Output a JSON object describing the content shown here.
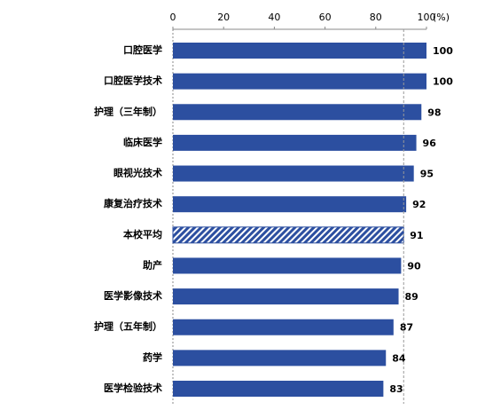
{
  "chart_data": {
    "type": "hbar",
    "categories": [
      "口腔医学",
      "口腔医学技术",
      "护理（三年制）",
      "临床医学",
      "眼视光技术",
      "康复治疗技术",
      "本校平均",
      "助产",
      "医学影像技术",
      "护理（五年制）",
      "药学",
      "医学检验技术"
    ],
    "values": [
      100,
      100,
      98,
      96,
      95,
      92,
      91,
      90,
      89,
      87,
      84,
      83
    ],
    "color": "#2c4fa0",
    "highlight": "本校平均",
    "xlim": [
      0,
      100
    ],
    "xticks": [
      0,
      20,
      40,
      60,
      80,
      100
    ],
    "xlabel": "(%)"
  }
}
